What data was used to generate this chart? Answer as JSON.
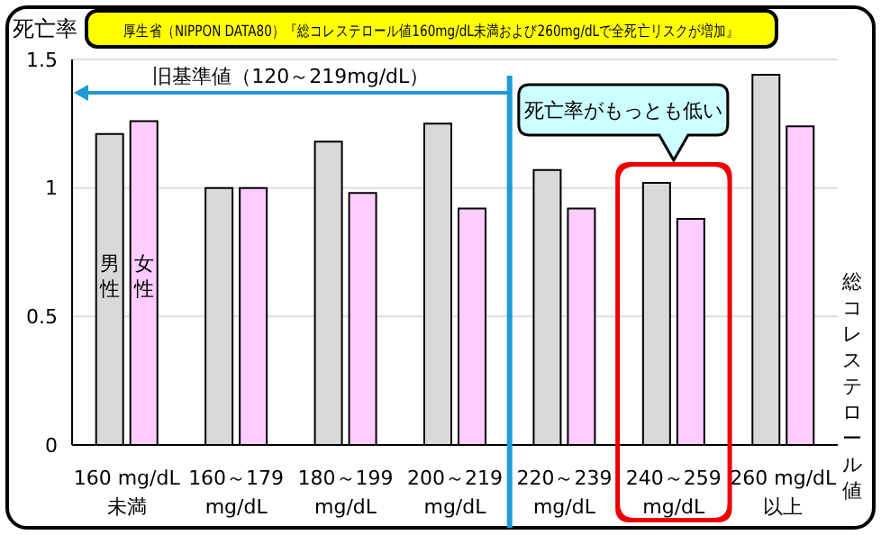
{
  "chart_data": {
    "type": "bar",
    "title": "厚生省（NIPPON DATA80）『総コレステロール値160mg/dL未満および260mg/dLで全死亡リスクが増加』",
    "ylabel": "死亡率",
    "xlabel": "総コレステロール値",
    "categories": [
      "160 mg/dL\n未満",
      "160～179\nmg/dL",
      "180～199\nmg/dL",
      "200～219\nmg/dL",
      "220～239\nmg/dL",
      "240～259\nmg/dL",
      "260 mg/dL\n以上"
    ],
    "series": [
      {
        "name": "男性",
        "color": "#d9d9d9",
        "values": [
          1.21,
          1.0,
          1.18,
          1.25,
          1.07,
          1.02,
          1.44
        ]
      },
      {
        "name": "女性",
        "color": "#ffccff",
        "values": [
          1.26,
          1.0,
          0.98,
          0.92,
          0.92,
          0.88,
          1.24
        ]
      }
    ],
    "ylim": [
      0,
      1.5
    ],
    "yticks": [
      0,
      0.5,
      1,
      1.5
    ],
    "grid": "y",
    "legend": false,
    "annotations": [
      "旧基準値（120～219mg/dL）",
      "死亡率がもっとも低い"
    ]
  }
}
